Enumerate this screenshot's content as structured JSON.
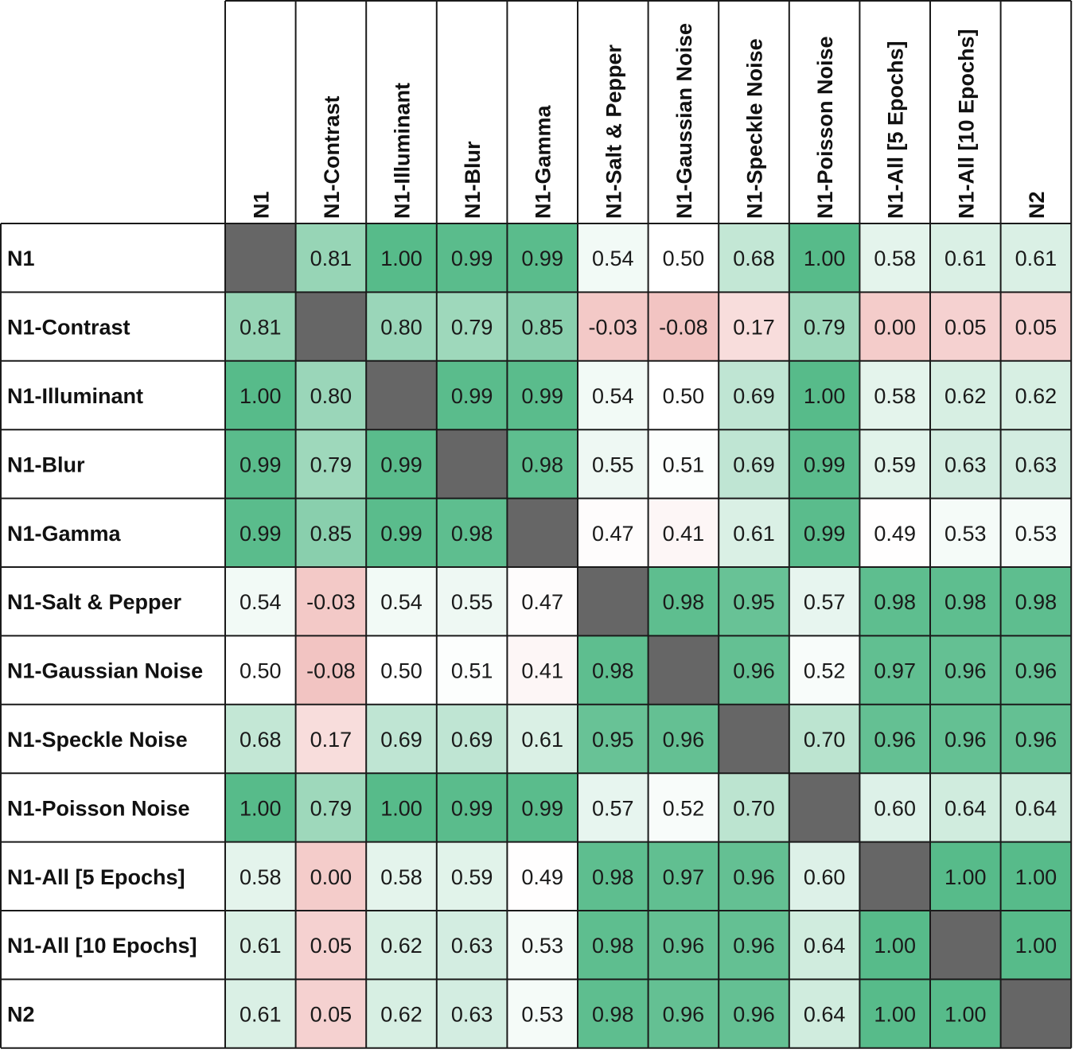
{
  "chart_data": {
    "type": "heatmap",
    "title": "",
    "xlabel": "",
    "ylabel": "",
    "columns": [
      "N1",
      "N1-Contrast",
      "N1-Illuminant",
      "N1-Blur",
      "N1-Gamma",
      "N1-Salt & Pepper",
      "N1-Gaussian Noise",
      "N1-Speckle Noise",
      "N1-Poisson Noise",
      "N1-All [5 Epochs]",
      "N1-All [10 Epochs]",
      "N2"
    ],
    "rows": [
      "N1",
      "N1-Contrast",
      "N1-Illuminant",
      "N1-Blur",
      "N1-Gamma",
      "N1-Salt & Pepper",
      "N1-Gaussian Noise",
      "N1-Speckle Noise",
      "N1-Poisson Noise",
      "N1-All [5 Epochs]",
      "N1-All [10 Epochs]",
      "N2"
    ],
    "values": [
      [
        null,
        0.81,
        1.0,
        0.99,
        0.99,
        0.54,
        0.5,
        0.68,
        1.0,
        0.58,
        0.61,
        0.61
      ],
      [
        0.81,
        null,
        0.8,
        0.79,
        0.85,
        -0.03,
        -0.08,
        0.17,
        0.79,
        0.0,
        0.05,
        0.05
      ],
      [
        1.0,
        0.8,
        null,
        0.99,
        0.99,
        0.54,
        0.5,
        0.69,
        1.0,
        0.58,
        0.62,
        0.62
      ],
      [
        0.99,
        0.79,
        0.99,
        null,
        0.98,
        0.55,
        0.51,
        0.69,
        0.99,
        0.59,
        0.63,
        0.63
      ],
      [
        0.99,
        0.85,
        0.99,
        0.98,
        null,
        0.47,
        0.41,
        0.61,
        0.99,
        0.49,
        0.53,
        0.53
      ],
      [
        0.54,
        -0.03,
        0.54,
        0.55,
        0.47,
        null,
        0.98,
        0.95,
        0.57,
        0.98,
        0.98,
        0.98
      ],
      [
        0.5,
        -0.08,
        0.5,
        0.51,
        0.41,
        0.98,
        null,
        0.96,
        0.52,
        0.97,
        0.96,
        0.96
      ],
      [
        0.68,
        0.17,
        0.69,
        0.69,
        0.61,
        0.95,
        0.96,
        null,
        0.7,
        0.96,
        0.96,
        0.96
      ],
      [
        1.0,
        0.79,
        1.0,
        0.99,
        0.99,
        0.57,
        0.52,
        0.7,
        null,
        0.6,
        0.64,
        0.64
      ],
      [
        0.58,
        0.0,
        0.58,
        0.59,
        0.49,
        0.98,
        0.97,
        0.96,
        0.6,
        null,
        1.0,
        1.0
      ],
      [
        0.61,
        0.05,
        0.62,
        0.63,
        0.53,
        0.98,
        0.96,
        0.96,
        0.64,
        1.0,
        null,
        1.0
      ],
      [
        0.61,
        0.05,
        0.62,
        0.63,
        0.53,
        0.98,
        0.96,
        0.96,
        0.64,
        1.0,
        1.0,
        null
      ]
    ],
    "value_format": "2 decimals",
    "color_scale": {
      "negative": "#f2c4c2",
      "midpoint": "#ffffff",
      "positive": "#57bb8a",
      "diagonal": "#666666"
    },
    "grid": true,
    "legend": "none"
  }
}
